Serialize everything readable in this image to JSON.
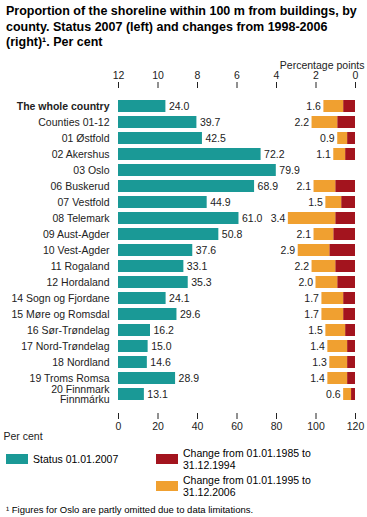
{
  "chart_data": {
    "type": "bar",
    "orientation": "horizontal",
    "title": "Proportion of the shoreline within 100 m from buildings, by county. Status 2007 (left) and changes from 1998-2006 (right)¹. Per cent",
    "footnote": "¹ Figures for Oslo are partly omitted due to data limitations.",
    "categories": [
      "The whole country",
      "Counties 01-12",
      "01 Østfold",
      "02 Akershus",
      "03 Oslo",
      "06 Buskerud",
      "07 Vestfold",
      "08 Telemark",
      "09 Aust-Agder",
      "10 Vest-Agder",
      "11 Rogaland",
      "12 Hordaland",
      "14 Sogn og Fjordane",
      "15 Møre og Romsdal",
      "16 Sør-Trøndelag",
      "17 Nord-Trøndelag",
      "18 Nordland",
      "19 Troms Romsa",
      "20 Finnmark\nFinnmárku"
    ],
    "series": [
      {
        "name": "Status 01.01.2007",
        "color": "#1a9996",
        "axis": "x",
        "values": [
          24.0,
          39.7,
          42.5,
          72.2,
          79.9,
          68.9,
          44.9,
          61.0,
          50.8,
          37.6,
          33.1,
          35.3,
          24.1,
          29.6,
          16.2,
          15.0,
          14.6,
          28.9,
          13.1
        ],
        "value_labels": [
          "24.0",
          "39.7",
          "42.5",
          "72.2",
          "79.9",
          "68.9",
          "44.9",
          "61.0",
          "50.8",
          "37.6",
          "33.1",
          "35.3",
          "24.1",
          "29.6",
          "16.2",
          "15.0",
          "14.6",
          "28.9",
          "13.1"
        ]
      },
      {
        "name": "Change from 01.01.1985 to 31.12.1994",
        "color": "#a3141e",
        "axis": "x2",
        "values": [
          0.6,
          0.9,
          0.4,
          0.5,
          null,
          1.0,
          0.7,
          1.0,
          1.1,
          1.3,
          1.0,
          0.9,
          0.6,
          0.6,
          0.5,
          0.4,
          0.4,
          0.4,
          0.2
        ]
      },
      {
        "name": "Change from 01.01.1995 to 31.12.2006",
        "color": "#f0a030",
        "axis": "x2",
        "values": [
          1.0,
          1.3,
          0.5,
          0.6,
          null,
          1.1,
          0.8,
          2.4,
          1.0,
          1.6,
          1.2,
          1.1,
          1.1,
          1.1,
          1.0,
          1.0,
          0.9,
          1.0,
          0.4
        ]
      }
    ],
    "change_totals": [
      1.6,
      2.2,
      0.9,
      1.1,
      null,
      2.1,
      1.5,
      3.4,
      2.1,
      2.9,
      2.2,
      2.0,
      1.7,
      1.7,
      1.5,
      1.4,
      1.3,
      1.4,
      0.6
    ],
    "change_total_labels": [
      "1.6",
      "2.2",
      "0.9",
      "1.1",
      null,
      "2.1",
      "1.5",
      "3.4",
      "2.1",
      "2.9",
      "2.2",
      "2.0",
      "1.7",
      "1.7",
      "1.5",
      "1.4",
      "1.3",
      "1.4",
      "0.6"
    ],
    "xlim": [
      0,
      120
    ],
    "xticks": [
      0,
      20,
      40,
      60,
      80,
      100,
      120
    ],
    "xlabel": "Per cent",
    "x2lim": [
      12,
      0
    ],
    "x2ticks": [
      12,
      10,
      8,
      6,
      4,
      2,
      0
    ],
    "x2label": "Percentage points",
    "stacked": true,
    "data_labels": true,
    "legend": "bottom"
  }
}
